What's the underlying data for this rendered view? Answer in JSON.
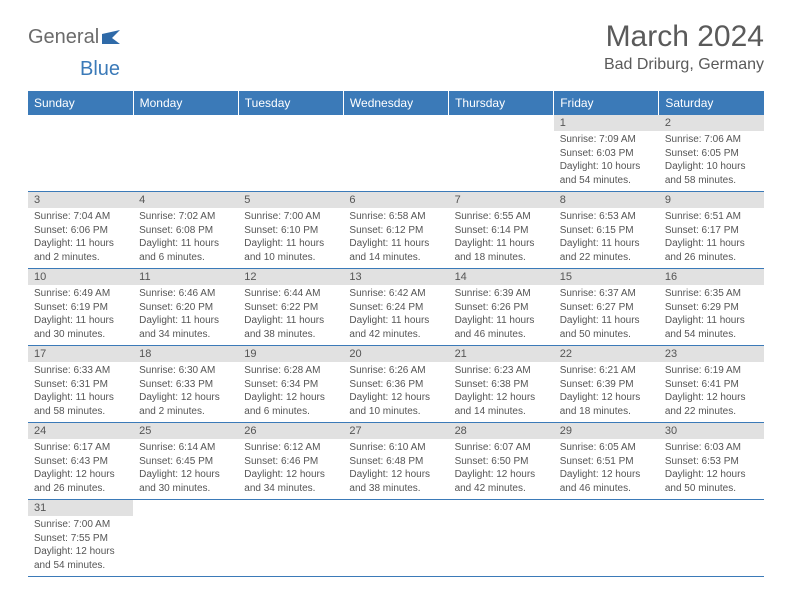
{
  "logo": {
    "text1": "General",
    "text2": "Blue"
  },
  "title": "March 2024",
  "location": "Bad Driburg, Germany",
  "colors": {
    "header_bg": "#3b7ab8",
    "header_text": "#ffffff",
    "daynum_bg": "#e1e1e1",
    "text": "#555555",
    "border": "#3b7ab8"
  },
  "daysOfWeek": [
    "Sunday",
    "Monday",
    "Tuesday",
    "Wednesday",
    "Thursday",
    "Friday",
    "Saturday"
  ],
  "weeks": [
    [
      {
        "n": "",
        "sr": "",
        "ss": "",
        "dl": ""
      },
      {
        "n": "",
        "sr": "",
        "ss": "",
        "dl": ""
      },
      {
        "n": "",
        "sr": "",
        "ss": "",
        "dl": ""
      },
      {
        "n": "",
        "sr": "",
        "ss": "",
        "dl": ""
      },
      {
        "n": "",
        "sr": "",
        "ss": "",
        "dl": ""
      },
      {
        "n": "1",
        "sr": "Sunrise: 7:09 AM",
        "ss": "Sunset: 6:03 PM",
        "dl": "Daylight: 10 hours and 54 minutes."
      },
      {
        "n": "2",
        "sr": "Sunrise: 7:06 AM",
        "ss": "Sunset: 6:05 PM",
        "dl": "Daylight: 10 hours and 58 minutes."
      }
    ],
    [
      {
        "n": "3",
        "sr": "Sunrise: 7:04 AM",
        "ss": "Sunset: 6:06 PM",
        "dl": "Daylight: 11 hours and 2 minutes."
      },
      {
        "n": "4",
        "sr": "Sunrise: 7:02 AM",
        "ss": "Sunset: 6:08 PM",
        "dl": "Daylight: 11 hours and 6 minutes."
      },
      {
        "n": "5",
        "sr": "Sunrise: 7:00 AM",
        "ss": "Sunset: 6:10 PM",
        "dl": "Daylight: 11 hours and 10 minutes."
      },
      {
        "n": "6",
        "sr": "Sunrise: 6:58 AM",
        "ss": "Sunset: 6:12 PM",
        "dl": "Daylight: 11 hours and 14 minutes."
      },
      {
        "n": "7",
        "sr": "Sunrise: 6:55 AM",
        "ss": "Sunset: 6:14 PM",
        "dl": "Daylight: 11 hours and 18 minutes."
      },
      {
        "n": "8",
        "sr": "Sunrise: 6:53 AM",
        "ss": "Sunset: 6:15 PM",
        "dl": "Daylight: 11 hours and 22 minutes."
      },
      {
        "n": "9",
        "sr": "Sunrise: 6:51 AM",
        "ss": "Sunset: 6:17 PM",
        "dl": "Daylight: 11 hours and 26 minutes."
      }
    ],
    [
      {
        "n": "10",
        "sr": "Sunrise: 6:49 AM",
        "ss": "Sunset: 6:19 PM",
        "dl": "Daylight: 11 hours and 30 minutes."
      },
      {
        "n": "11",
        "sr": "Sunrise: 6:46 AM",
        "ss": "Sunset: 6:20 PM",
        "dl": "Daylight: 11 hours and 34 minutes."
      },
      {
        "n": "12",
        "sr": "Sunrise: 6:44 AM",
        "ss": "Sunset: 6:22 PM",
        "dl": "Daylight: 11 hours and 38 minutes."
      },
      {
        "n": "13",
        "sr": "Sunrise: 6:42 AM",
        "ss": "Sunset: 6:24 PM",
        "dl": "Daylight: 11 hours and 42 minutes."
      },
      {
        "n": "14",
        "sr": "Sunrise: 6:39 AM",
        "ss": "Sunset: 6:26 PM",
        "dl": "Daylight: 11 hours and 46 minutes."
      },
      {
        "n": "15",
        "sr": "Sunrise: 6:37 AM",
        "ss": "Sunset: 6:27 PM",
        "dl": "Daylight: 11 hours and 50 minutes."
      },
      {
        "n": "16",
        "sr": "Sunrise: 6:35 AM",
        "ss": "Sunset: 6:29 PM",
        "dl": "Daylight: 11 hours and 54 minutes."
      }
    ],
    [
      {
        "n": "17",
        "sr": "Sunrise: 6:33 AM",
        "ss": "Sunset: 6:31 PM",
        "dl": "Daylight: 11 hours and 58 minutes."
      },
      {
        "n": "18",
        "sr": "Sunrise: 6:30 AM",
        "ss": "Sunset: 6:33 PM",
        "dl": "Daylight: 12 hours and 2 minutes."
      },
      {
        "n": "19",
        "sr": "Sunrise: 6:28 AM",
        "ss": "Sunset: 6:34 PM",
        "dl": "Daylight: 12 hours and 6 minutes."
      },
      {
        "n": "20",
        "sr": "Sunrise: 6:26 AM",
        "ss": "Sunset: 6:36 PM",
        "dl": "Daylight: 12 hours and 10 minutes."
      },
      {
        "n": "21",
        "sr": "Sunrise: 6:23 AM",
        "ss": "Sunset: 6:38 PM",
        "dl": "Daylight: 12 hours and 14 minutes."
      },
      {
        "n": "22",
        "sr": "Sunrise: 6:21 AM",
        "ss": "Sunset: 6:39 PM",
        "dl": "Daylight: 12 hours and 18 minutes."
      },
      {
        "n": "23",
        "sr": "Sunrise: 6:19 AM",
        "ss": "Sunset: 6:41 PM",
        "dl": "Daylight: 12 hours and 22 minutes."
      }
    ],
    [
      {
        "n": "24",
        "sr": "Sunrise: 6:17 AM",
        "ss": "Sunset: 6:43 PM",
        "dl": "Daylight: 12 hours and 26 minutes."
      },
      {
        "n": "25",
        "sr": "Sunrise: 6:14 AM",
        "ss": "Sunset: 6:45 PM",
        "dl": "Daylight: 12 hours and 30 minutes."
      },
      {
        "n": "26",
        "sr": "Sunrise: 6:12 AM",
        "ss": "Sunset: 6:46 PM",
        "dl": "Daylight: 12 hours and 34 minutes."
      },
      {
        "n": "27",
        "sr": "Sunrise: 6:10 AM",
        "ss": "Sunset: 6:48 PM",
        "dl": "Daylight: 12 hours and 38 minutes."
      },
      {
        "n": "28",
        "sr": "Sunrise: 6:07 AM",
        "ss": "Sunset: 6:50 PM",
        "dl": "Daylight: 12 hours and 42 minutes."
      },
      {
        "n": "29",
        "sr": "Sunrise: 6:05 AM",
        "ss": "Sunset: 6:51 PM",
        "dl": "Daylight: 12 hours and 46 minutes."
      },
      {
        "n": "30",
        "sr": "Sunrise: 6:03 AM",
        "ss": "Sunset: 6:53 PM",
        "dl": "Daylight: 12 hours and 50 minutes."
      }
    ],
    [
      {
        "n": "31",
        "sr": "Sunrise: 7:00 AM",
        "ss": "Sunset: 7:55 PM",
        "dl": "Daylight: 12 hours and 54 minutes."
      },
      {
        "n": "",
        "sr": "",
        "ss": "",
        "dl": ""
      },
      {
        "n": "",
        "sr": "",
        "ss": "",
        "dl": ""
      },
      {
        "n": "",
        "sr": "",
        "ss": "",
        "dl": ""
      },
      {
        "n": "",
        "sr": "",
        "ss": "",
        "dl": ""
      },
      {
        "n": "",
        "sr": "",
        "ss": "",
        "dl": ""
      },
      {
        "n": "",
        "sr": "",
        "ss": "",
        "dl": ""
      }
    ]
  ]
}
